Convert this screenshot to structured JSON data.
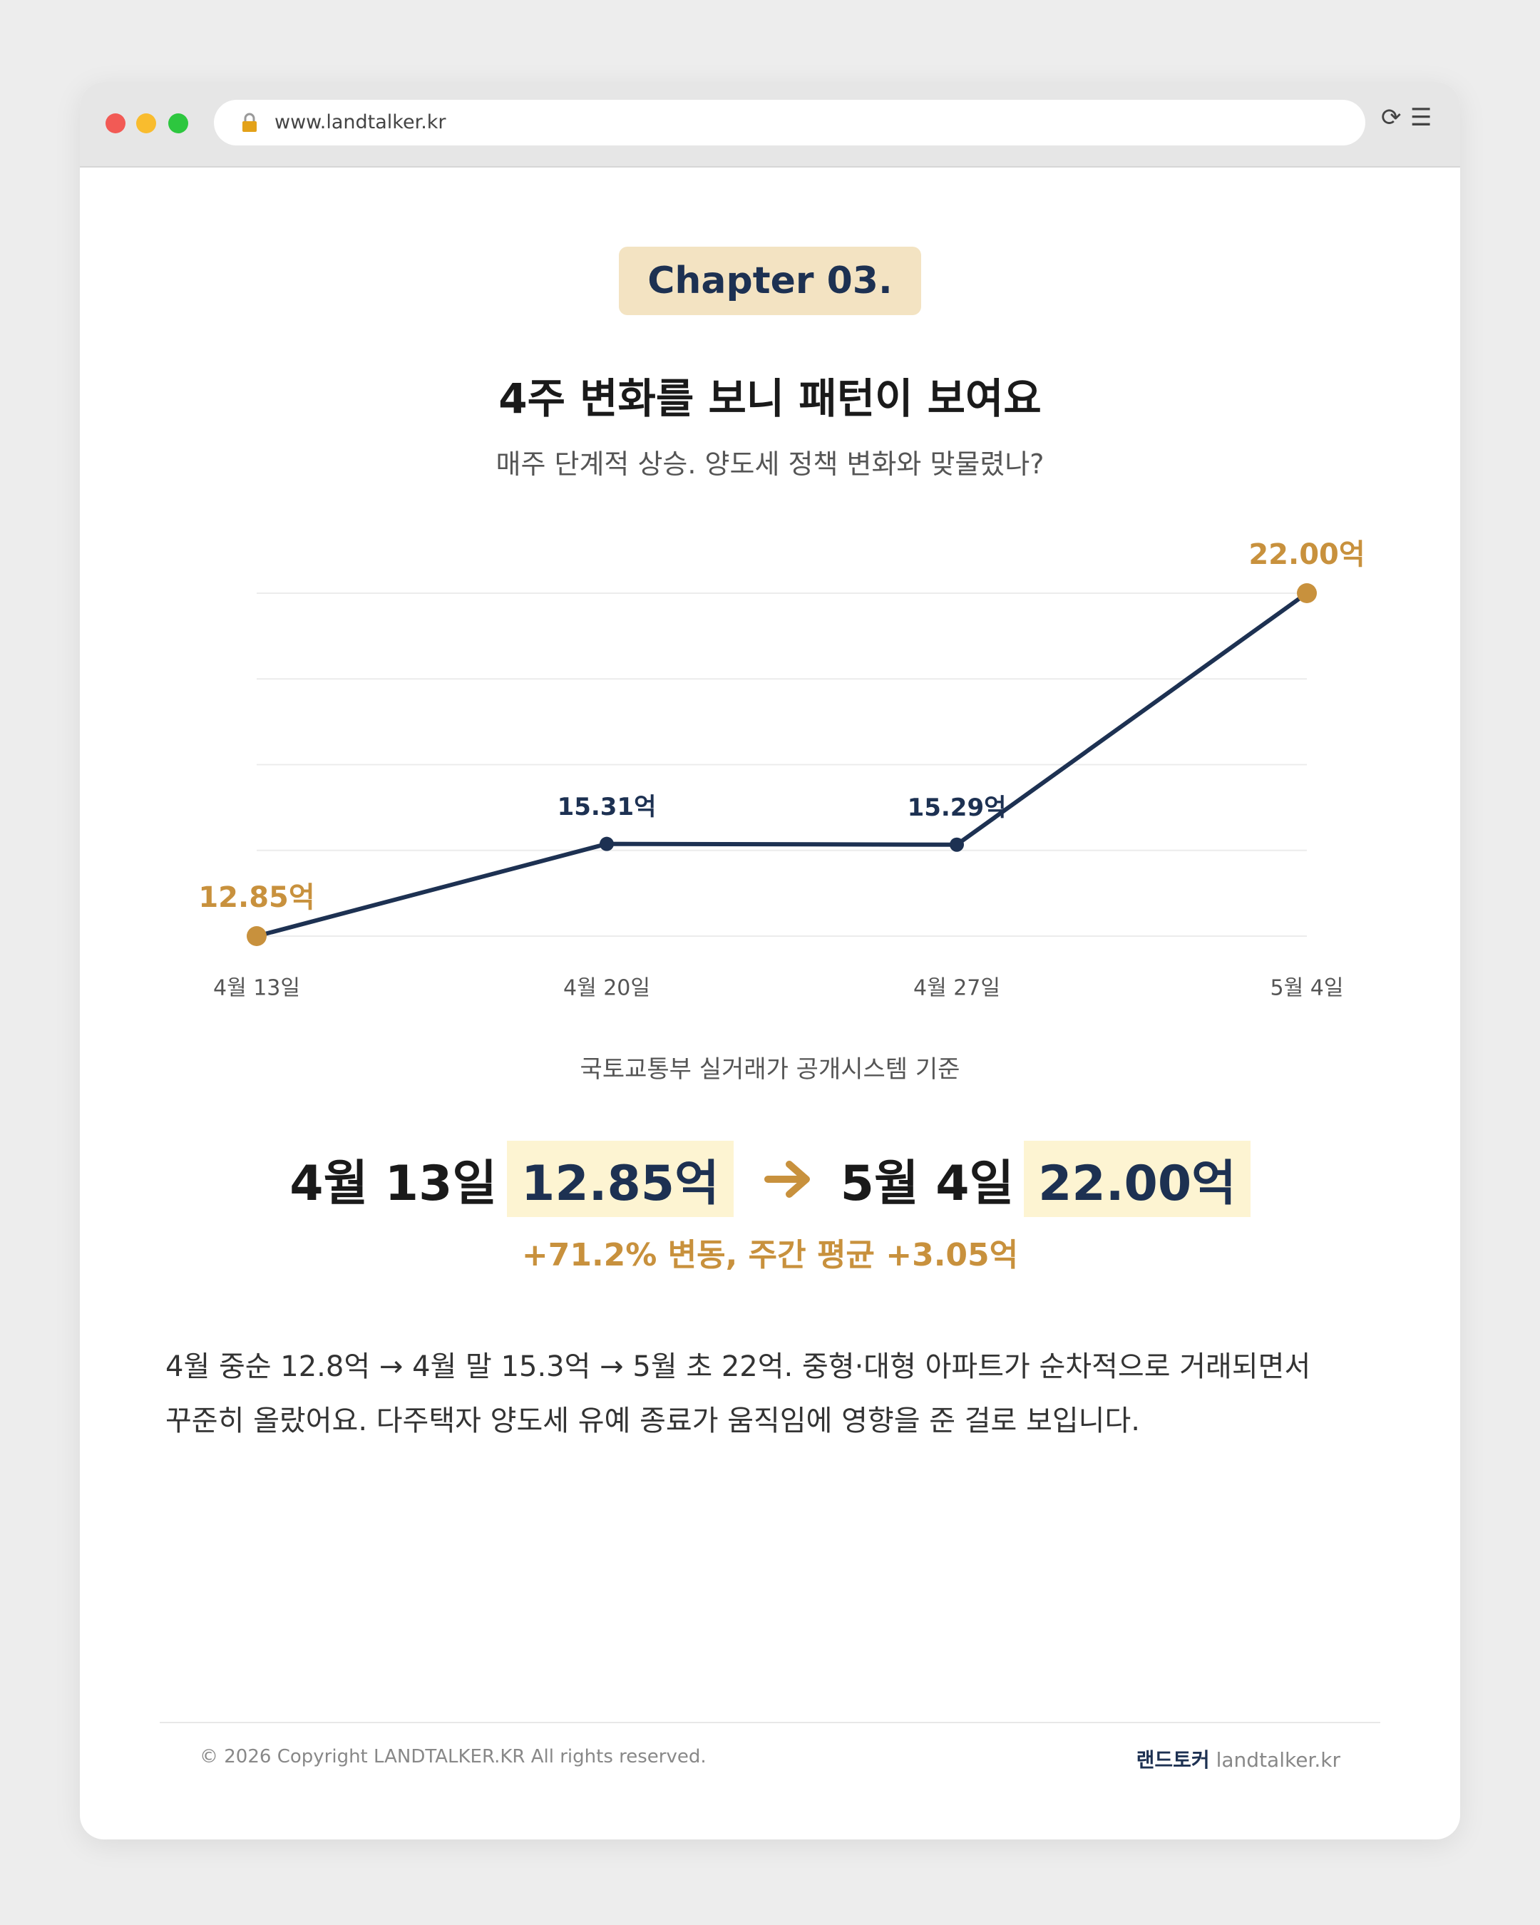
{
  "browser": {
    "url": "www.landtalker.kr"
  },
  "badge": "Chapter 03.",
  "title": "4주 변화를 보니 패턴이 보여요",
  "subtitle": "매주 단계적 상승. 양도세 정책 변화와 맞물렸나?",
  "chart_data": {
    "type": "line",
    "categories": [
      "4월 13일",
      "4월 20일",
      "4월 27일",
      "5월 4일"
    ],
    "values": [
      12.85,
      15.31,
      15.29,
      22.0
    ],
    "value_labels": [
      "12.85억",
      "15.31억",
      "15.29억",
      "22.00억"
    ],
    "color": "#1d3152",
    "marker_colors": [
      "#c8913d",
      "#1d3152",
      "#1d3152",
      "#c8913d"
    ],
    "ylim": [
      12.85,
      22.0
    ],
    "yticks": [
      12.85,
      15.1375,
      17.425,
      19.7125,
      22.0
    ],
    "grid": true,
    "note": "국토교통부 실거래가 공개시스템 기준"
  },
  "comparison": {
    "from_date": "4월 13일",
    "from_value": "12.85억",
    "to_date": "5월 4일",
    "to_value": "22.00억",
    "change": "+71.2% 변동, 주간 평균 +3.05억"
  },
  "paragraph": [
    "4월 중순 12.8억 → 4월 말 15.3억 → 5월 초 22억. 중형·대형 아파트가 순차적으로 거래되면서",
    "꾸준히 올랐어요. 다주택자 양도세 유예 종료가 움직임에 영향을 준 걸로 보입니다."
  ],
  "footer": {
    "copyright": "© 2026 Copyright LANDTALKER.KR All rights reserved.",
    "brand": "랜드토커",
    "domain": "landtalker.kr"
  }
}
